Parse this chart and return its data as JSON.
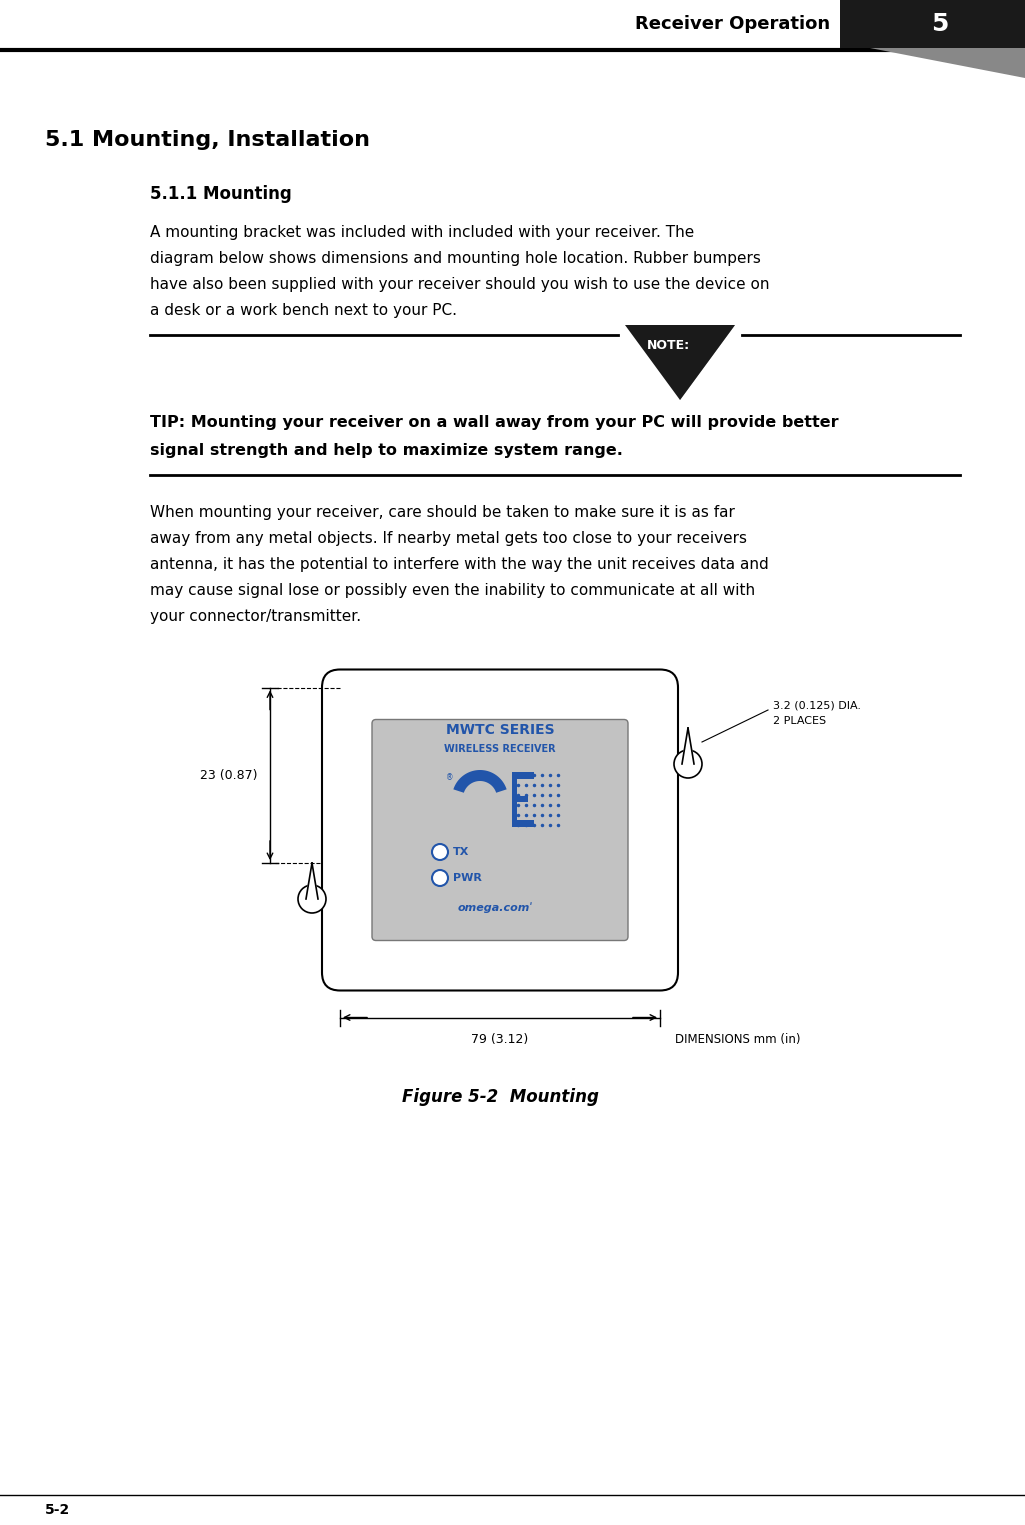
{
  "bg_color": "#ffffff",
  "header_text": "Receiver Operation",
  "header_num": "5",
  "section_title": "5.1 Mounting, Installation",
  "subsection_title": "5.1.1 Mounting",
  "para1_lines": [
    "A mounting bracket was included with included with your receiver. The",
    "diagram below shows dimensions and mounting hole location. Rubber bumpers",
    "have also been supplied with your receiver should you wish to use the device on",
    "a desk or a work bench next to your PC."
  ],
  "tip_text_line1": "TIP: Mounting your receiver on a wall away from your PC will provide better",
  "tip_text_line2": "signal strength and help to maximize system range.",
  "para2_lines": [
    "When mounting your receiver, care should be taken to make sure it is as far",
    "away from any metal objects. If nearby metal gets too close to your receivers",
    "antenna, it has the potential to interfere with the way the unit receives data and",
    "may cause signal lose or possibly even the inability to communicate at all with",
    "your connector/transmitter."
  ],
  "fig_caption": "Figure 5-2  Mounting",
  "dim_label1": "23 (0.87)",
  "dim_label2": "79 (3.12)",
  "dim_label3_line1": "3.2 (0.125) DIA.",
  "dim_label3_line2": "2 PLACES",
  "dim_note": "DIMENSIONS mm (in)",
  "footer_left": "5-2",
  "blue_color": "#2255aa",
  "dark_color": "#1a1a1a",
  "gray_bg": "#c0c0c0",
  "line_color": "#333333"
}
